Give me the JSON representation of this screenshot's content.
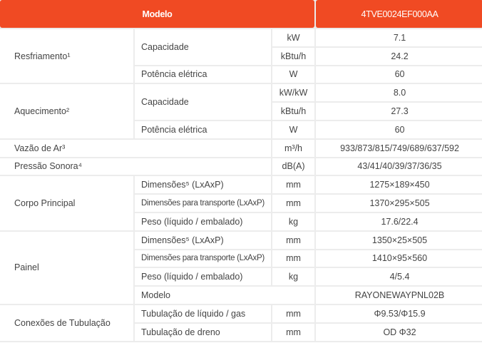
{
  "header": {
    "label": "Modelo",
    "model": "4TVE0024EF000AA"
  },
  "resfriamento": {
    "label": "Resfriamento¹",
    "capacidade": "Capacidade",
    "kw_unit": "kW",
    "kw": "7.1",
    "kbtu_unit": "kBtu/h",
    "kbtu": "24.2",
    "potencia": "Potência elétrica",
    "pot_unit": "W",
    "pot": "60"
  },
  "aquecimento": {
    "label": "Aquecimento²",
    "capacidade": "Capacidade",
    "kw_unit": "kW/kW",
    "kw": "8.0",
    "kbtu_unit": "kBtu/h",
    "kbtu": "27.3",
    "potencia": "Potência elétrica",
    "pot_unit": "W",
    "pot": "60"
  },
  "vazao": {
    "label": "Vazão de Ar³",
    "unit": "m³/h",
    "value": "933/873/815/749/689/637/592"
  },
  "pressao": {
    "label": "Pressão Sonora⁴",
    "unit": "dB(A)",
    "value": "43/41/40/39/37/36/35"
  },
  "corpo": {
    "label": "Corpo Principal",
    "dim": "Dimensões⁵ (LxAxP)",
    "dim_unit": "mm",
    "dim_val": "1275×189×450",
    "trans": "Dimensões para transporte (LxAxP)",
    "trans_unit": "mm",
    "trans_val": "1370×295×505",
    "peso": "Peso (líquido / embalado)",
    "peso_unit": "kg",
    "peso_val": "17.6/22.4"
  },
  "painel": {
    "label": "Painel",
    "dim": "Dimensões⁵ (LxAxP)",
    "dim_unit": "mm",
    "dim_val": "1350×25×505",
    "trans": "Dimensões para transporte (LxAxP)",
    "trans_unit": "mm",
    "trans_val": "1410×95×560",
    "peso": "Peso (líquido / embalado)",
    "peso_unit": "kg",
    "peso_val": "4/5.4",
    "modelo": "Modelo",
    "modelo_val": "RAYONEWAYPNL02B"
  },
  "conexoes": {
    "label": "Conexões de Tubulação",
    "liq": "Tubulação de líquido / gas",
    "liq_unit": "mm",
    "liq_val": "Φ9.53/Φ15.9",
    "dreno": "Tubulação de dreno",
    "dreno_unit": "mm",
    "dreno_val": "OD Φ32"
  }
}
